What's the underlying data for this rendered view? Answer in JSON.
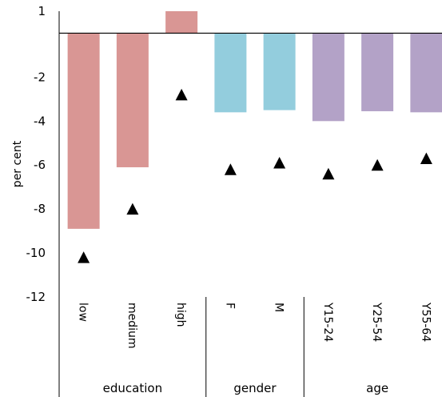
{
  "chart_data": {
    "type": "bar",
    "ylabel": "per cent",
    "ylim": [
      -12,
      1
    ],
    "yticks": [
      "1",
      "-2",
      "-4",
      "-6",
      "-8",
      "-10",
      "-12"
    ],
    "ytick_values": [
      1,
      -2,
      -4,
      -6,
      -8,
      -10,
      -12
    ],
    "categories": [
      "low",
      "medium",
      "high",
      "F",
      "M",
      "Y15-24",
      "Y25-54",
      "Y55-64"
    ],
    "groups": [
      {
        "name": "education",
        "start": 0,
        "end": 2,
        "color": "#d99694"
      },
      {
        "name": "gender",
        "start": 3,
        "end": 4,
        "color": "#93cddd"
      },
      {
        "name": "age",
        "start": 5,
        "end": 7,
        "color": "#b3a2c7"
      }
    ],
    "series": [
      {
        "type": "bar",
        "values": [
          -8.9,
          -6.1,
          1.0,
          -3.6,
          -3.5,
          -4.0,
          -3.55,
          -3.6
        ]
      },
      {
        "type": "marker",
        "marker": "triangle",
        "color": "#000000",
        "values": [
          -10.2,
          -8.0,
          -2.8,
          -6.2,
          -5.9,
          -6.4,
          -6.0,
          -5.7
        ]
      }
    ]
  }
}
